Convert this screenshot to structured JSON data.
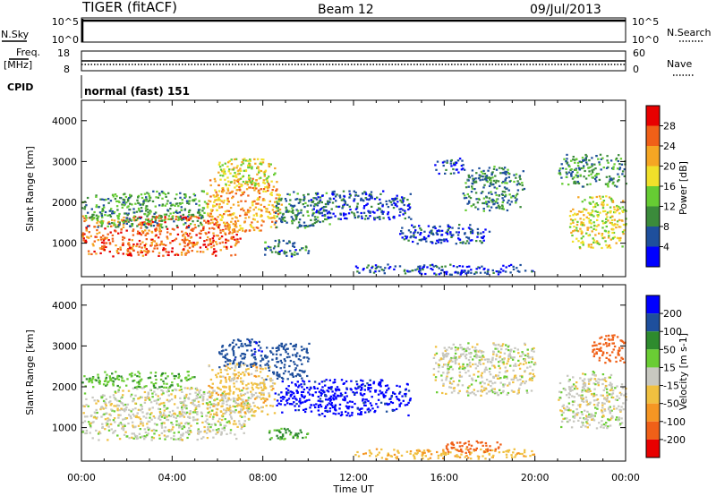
{
  "header": {
    "station": "TIGER (fitACF)",
    "beam": "Beam 12",
    "date": "09/Jul/2013"
  },
  "status_panels": {
    "nsky_label": "N.Sky",
    "nsearch_label": "N.Search",
    "freq_label_1": "Freq.",
    "freq_label_2": "[MHz]",
    "nave_label": "Nave",
    "cpid_label": "CPID",
    "cpid_value": "normal (fast) 151",
    "left_ticks_noise": [
      "10^5",
      "10^0"
    ],
    "right_ticks_noise": [
      "10^5",
      "10^0"
    ],
    "left_ticks_freq": [
      "18",
      "8"
    ],
    "right_ticks_nave": [
      "60",
      "0"
    ]
  },
  "axes": {
    "xlabel": "Time UT",
    "x_ticks": [
      "00:00",
      "04:00",
      "08:00",
      "12:00",
      "16:00",
      "20:00",
      "00:00"
    ],
    "ylabel": "Slant Range [km]",
    "y_ticks": [
      "1000",
      "2000",
      "3000",
      "4000"
    ]
  },
  "colorbars": {
    "power": {
      "label": "Power [dB]",
      "ticks": [
        "4",
        "8",
        "12",
        "16",
        "20",
        "24",
        "28"
      ],
      "colors": [
        "#0000ff",
        "#1e4f9c",
        "#3b8b3b",
        "#66cc33",
        "#f0e02a",
        "#f5a623",
        "#f06018",
        "#e80000"
      ]
    },
    "velocity": {
      "label": "Velocity [m s-1]",
      "ticks": [
        "200",
        "100",
        "50",
        "15",
        "-15",
        "-50",
        "-100",
        "-200"
      ],
      "colors": [
        "#0000ff",
        "#1e4f9c",
        "#2e8b2e",
        "#6acd34",
        "#c8c8c0",
        "#f0c040",
        "#f59623",
        "#f06018",
        "#e80000"
      ]
    }
  },
  "chart_data": [
    {
      "type": "heatmap",
      "name": "power",
      "xlabel": "Time UT",
      "ylabel": "Slant Range [km]",
      "xlim": [
        0,
        24
      ],
      "ylim": [
        180,
        4500
      ],
      "unit": "dB",
      "blobs": [
        {
          "t0": 0.0,
          "t1": 7.0,
          "r0": 700,
          "r1": 1700,
          "value": 26
        },
        {
          "t0": 0.0,
          "t1": 5.5,
          "r0": 1400,
          "r1": 2300,
          "value": 11
        },
        {
          "t0": 5.5,
          "t1": 8.8,
          "r0": 1300,
          "r1": 2600,
          "value": 22
        },
        {
          "t0": 6.0,
          "t1": 8.5,
          "r0": 2400,
          "r1": 3100,
          "value": 17
        },
        {
          "t0": 8.5,
          "t1": 11.0,
          "r0": 1400,
          "r1": 2300,
          "value": 9
        },
        {
          "t0": 8.0,
          "t1": 10.0,
          "r0": 700,
          "r1": 1100,
          "value": 8
        },
        {
          "t0": 10.0,
          "t1": 14.5,
          "r0": 1600,
          "r1": 2300,
          "value": 6
        },
        {
          "t0": 15.5,
          "t1": 16.8,
          "r0": 2700,
          "r1": 3100,
          "value": 5
        },
        {
          "t0": 16.8,
          "t1": 19.5,
          "r0": 1800,
          "r1": 2900,
          "value": 9
        },
        {
          "t0": 14.0,
          "t1": 18.0,
          "r0": 1000,
          "r1": 1500,
          "value": 5
        },
        {
          "t0": 21.5,
          "t1": 24.0,
          "r0": 900,
          "r1": 2200,
          "value": 18
        },
        {
          "t0": 21.0,
          "t1": 24.0,
          "r0": 2400,
          "r1": 3200,
          "value": 10
        },
        {
          "t0": 12.0,
          "t1": 20.0,
          "r0": 250,
          "r1": 500,
          "value": 5
        }
      ]
    },
    {
      "type": "heatmap",
      "name": "velocity",
      "xlabel": "Time UT",
      "ylabel": "Slant Range [km]",
      "xlim": [
        0,
        24
      ],
      "ylim": [
        180,
        4500
      ],
      "unit": "m s-1",
      "blobs": [
        {
          "t0": 0.0,
          "t1": 7.5,
          "r0": 700,
          "r1": 2000,
          "value": 0
        },
        {
          "t0": 0.0,
          "t1": 5.0,
          "r0": 2000,
          "r1": 2400,
          "value": 40
        },
        {
          "t0": 5.5,
          "t1": 8.5,
          "r0": 1300,
          "r1": 2600,
          "value": -30
        },
        {
          "t0": 6.0,
          "t1": 8.0,
          "r0": 2500,
          "r1": 3200,
          "value": 180
        },
        {
          "t0": 8.0,
          "t1": 10.0,
          "r0": 2200,
          "r1": 3100,
          "value": 150
        },
        {
          "t0": 8.5,
          "t1": 14.5,
          "r0": 1300,
          "r1": 2200,
          "value": 220
        },
        {
          "t0": 8.0,
          "t1": 10.0,
          "r0": 700,
          "r1": 1000,
          "value": 60
        },
        {
          "t0": 15.5,
          "t1": 20.0,
          "r0": 1800,
          "r1": 3100,
          "value": 0
        },
        {
          "t0": 21.0,
          "t1": 24.0,
          "r0": 1000,
          "r1": 2400,
          "value": 0
        },
        {
          "t0": 22.5,
          "t1": 24.0,
          "r0": 2600,
          "r1": 3300,
          "value": -150
        },
        {
          "t0": 12.0,
          "t1": 20.0,
          "r0": 250,
          "r1": 500,
          "value": -40
        },
        {
          "t0": 16.0,
          "t1": 18.5,
          "r0": 400,
          "r1": 700,
          "value": -150
        }
      ]
    }
  ]
}
